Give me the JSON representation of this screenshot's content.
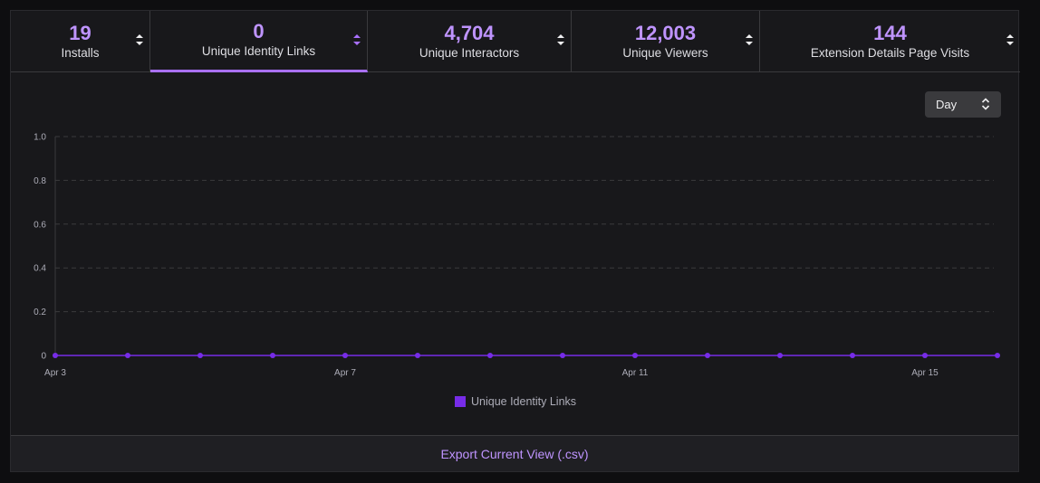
{
  "tabs": [
    {
      "value": "19",
      "label": "Installs"
    },
    {
      "value": "0",
      "label": "Unique Identity Links"
    },
    {
      "value": "4,704",
      "label": "Unique Interactors"
    },
    {
      "value": "12,003",
      "label": "Unique Viewers"
    },
    {
      "value": "144",
      "label": "Extension Details Page Visits"
    }
  ],
  "active_tab": "Unique Identity Links",
  "interval_select": {
    "value": "Day"
  },
  "export_label": "Export Current View (.csv)",
  "colors": {
    "accent": "#bf94ff",
    "series": "#772ce8",
    "background": "#18181b"
  },
  "chart_data": {
    "type": "line",
    "x": [
      "Apr 3",
      "Apr 4",
      "Apr 5",
      "Apr 6",
      "Apr 7",
      "Apr 8",
      "Apr 9",
      "Apr 10",
      "Apr 11",
      "Apr 12",
      "Apr 13",
      "Apr 14",
      "Apr 15",
      "Apr 16"
    ],
    "xticks": [
      "Apr 3",
      "Apr 7",
      "Apr 11",
      "Apr 15"
    ],
    "yticks": [
      "1.0",
      "0.8",
      "0.6",
      "0.4",
      "0.2",
      "0"
    ],
    "series": [
      {
        "name": "Unique Identity Links",
        "values": [
          0,
          0,
          0,
          0,
          0,
          0,
          0,
          0,
          0,
          0,
          0,
          0,
          0,
          0
        ]
      }
    ],
    "ylim": [
      0,
      1
    ],
    "grid": true,
    "legend": "bottom-center"
  }
}
